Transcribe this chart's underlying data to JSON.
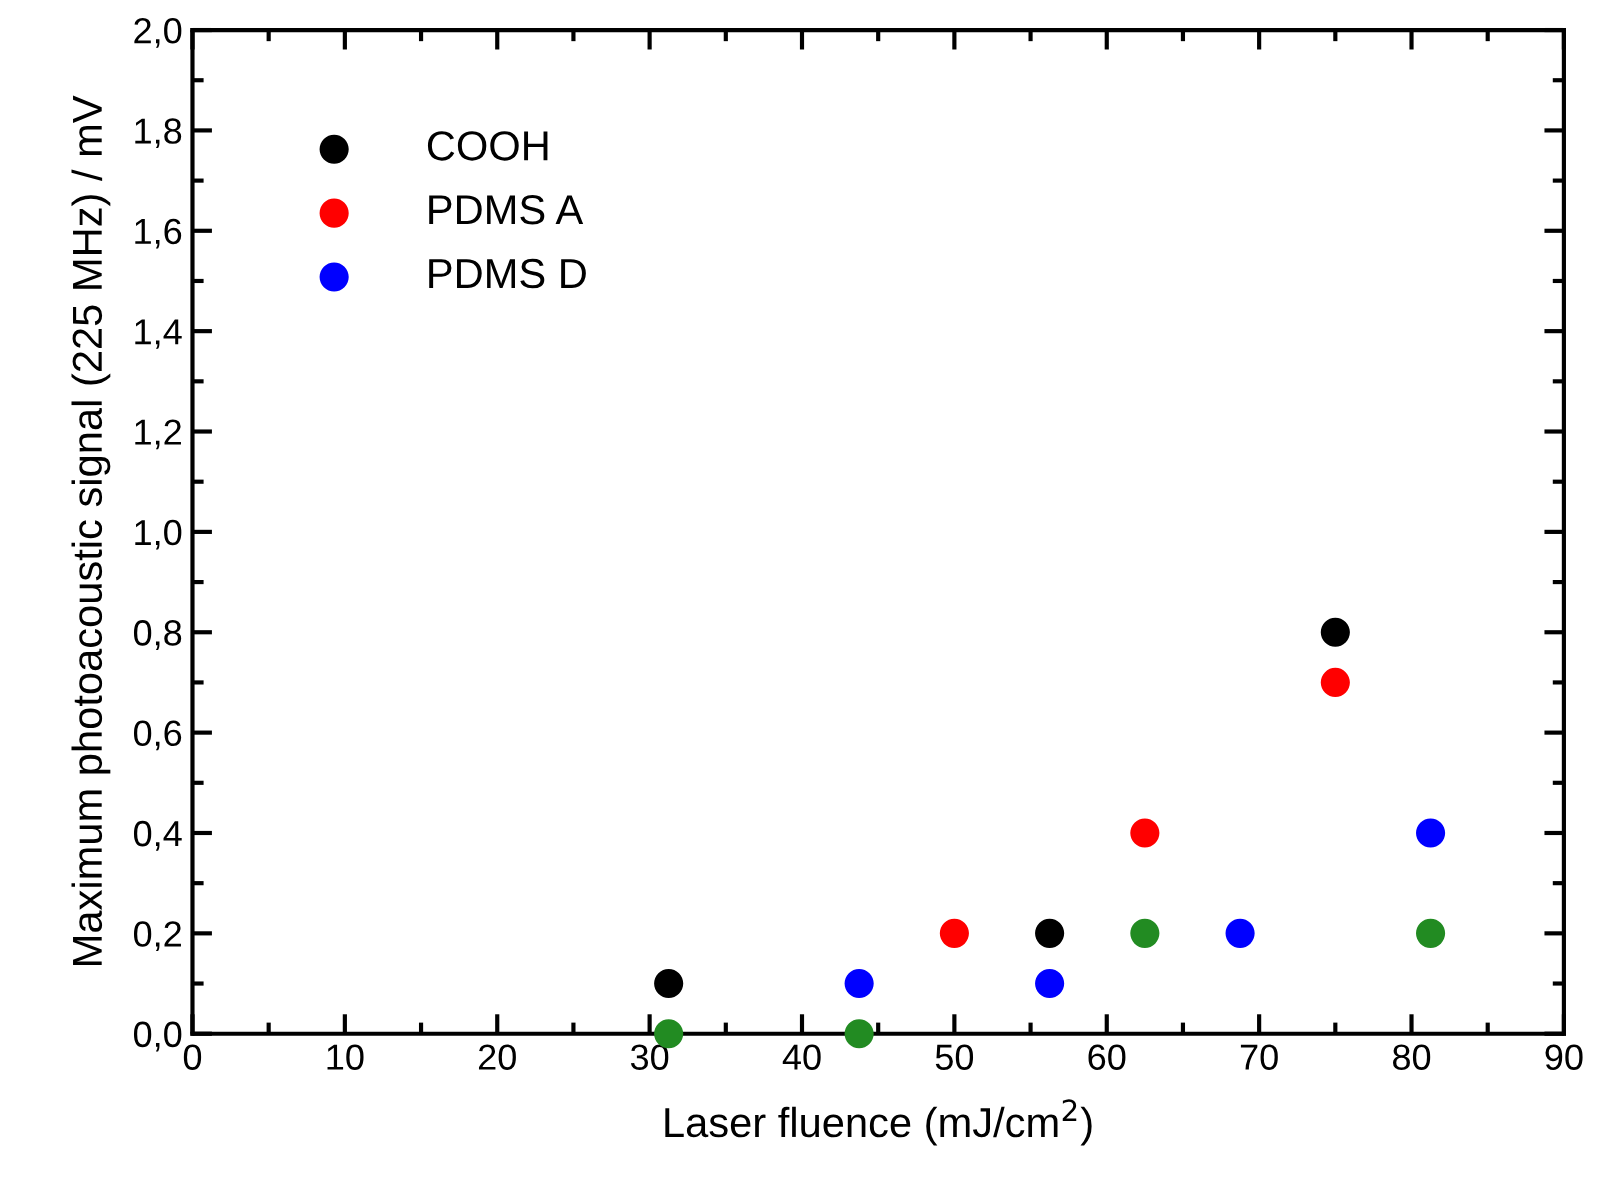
{
  "chart_data": {
    "type": "scatter",
    "xlabel": "Laser fluence (mJ/cm$^{2}$)",
    "ylabel": "Maximum photoacoustic signal (225 MHz) / mV",
    "xlim": [
      0,
      90
    ],
    "xticks": [
      0,
      10,
      20,
      30,
      40,
      50,
      60,
      70,
      80,
      90
    ],
    "ylim": [
      0,
      2.0
    ],
    "yticks": [
      {
        "value": 0,
        "label": "0,0"
      },
      {
        "value": 0.2,
        "label": "0,2"
      },
      {
        "value": 0.4,
        "label": "0,4"
      },
      {
        "value": 0.6,
        "label": "0,6"
      },
      {
        "value": 0.8,
        "label": "0,8"
      },
      {
        "value": 1.0,
        "label": "1,0"
      },
      {
        "value": 1.2,
        "label": "1,2"
      },
      {
        "value": 1.4,
        "label": "1,4"
      },
      {
        "value": 1.6,
        "label": "1,6"
      },
      {
        "value": 1.8,
        "label": "1,8"
      },
      {
        "value": 2.0,
        "label": "2,0"
      }
    ],
    "marker": "circle",
    "grid": false,
    "legend": "top left",
    "series": [
      {
        "name": "COOH",
        "color": "#000000",
        "x": [
          31.25,
          56.25,
          75
        ],
        "values": [
          0.1,
          0.2,
          0.8
        ]
      },
      {
        "name": "PDMS A",
        "color": "#ff0000",
        "x": [
          50,
          62.5,
          75
        ],
        "values": [
          0.2,
          0.4,
          0.7
        ]
      },
      {
        "name": "PDMS D",
        "color": "#0000ff",
        "x": [
          43.75,
          56.25,
          68.75,
          81.25
        ],
        "values": [
          0.1,
          0.1,
          0.2,
          0.4
        ]
      },
      {
        "color": "#228b22",
        "x": [
          31.25,
          43.75,
          62.5,
          81.25
        ],
        "values": [
          0,
          0,
          0.2,
          0.2
        ]
      }
    ]
  }
}
